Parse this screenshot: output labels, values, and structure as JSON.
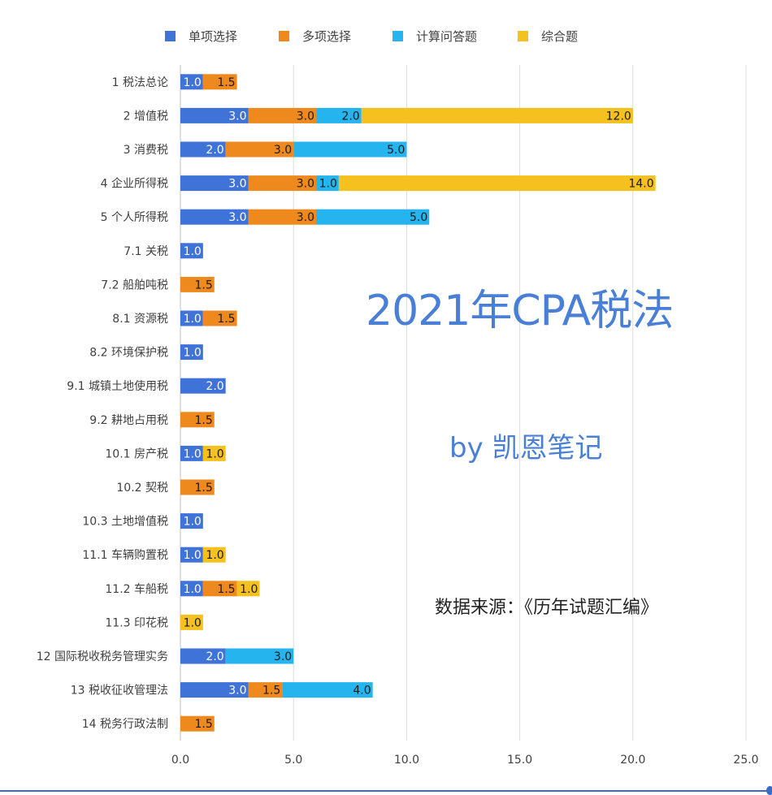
{
  "chart_data": {
    "type": "bar",
    "orientation": "horizontal",
    "stacked": true,
    "categories": [
      "1 税法总论",
      "2 增值税",
      "3 消费税",
      "4 企业所得税",
      "5 个人所得税",
      "7.1 关税",
      "7.2 船舶吨税",
      "8.1 资源税",
      "8.2 环境保护税",
      "9.1 城镇土地使用税",
      "9.2 耕地占用税",
      "10.1 房产税",
      "10.2 契税",
      "10.3 土地增值税",
      "11.1 车辆购置税",
      "11.2 车船税",
      "11.3 印花税",
      "12 国际税收税务管理实务",
      "13 税收征收管理法",
      "14 税务行政法制"
    ],
    "series": [
      {
        "name": "单项选择",
        "color": "#3f73d8",
        "values": [
          1.0,
          3.0,
          2.0,
          3.0,
          3.0,
          1.0,
          0,
          1.0,
          1.0,
          2.0,
          0,
          1.0,
          0,
          1.0,
          1.0,
          1.0,
          0,
          2.0,
          3.0,
          0
        ]
      },
      {
        "name": "多项选择",
        "color": "#ee8a1d",
        "values": [
          1.5,
          3.0,
          3.0,
          3.0,
          3.0,
          0,
          1.5,
          1.5,
          0,
          0,
          1.5,
          0,
          1.5,
          0,
          0,
          1.5,
          0,
          0,
          1.5,
          1.5
        ]
      },
      {
        "name": "计算问答题",
        "color": "#26b4ee",
        "values": [
          0,
          2.0,
          5.0,
          1.0,
          5.0,
          0,
          0,
          0,
          0,
          0,
          0,
          0,
          0,
          0,
          0,
          0,
          0,
          3.0,
          4.0,
          0
        ]
      },
      {
        "name": "综合题",
        "color": "#f4c11e",
        "values": [
          0,
          12.0,
          0,
          14.0,
          0,
          0,
          0,
          0,
          0,
          0,
          0,
          1.0,
          0,
          0,
          1.0,
          1.0,
          1.0,
          0,
          0,
          0
        ]
      }
    ],
    "xlim": [
      0,
      25
    ],
    "xticks": [
      "0.0",
      "5.0",
      "10.0",
      "15.0",
      "20.0",
      "25.0"
    ],
    "grid": true,
    "legend_position": "top"
  },
  "overlay": {
    "title": "2021年CPA税法",
    "byline": "by 凯恩笔记",
    "source": "数据来源：《历年试题汇编》"
  },
  "colors": {
    "title_blue": "#4a7fd6",
    "gridline": "#dcdcdc",
    "axis_line": "#bfbfbf"
  }
}
